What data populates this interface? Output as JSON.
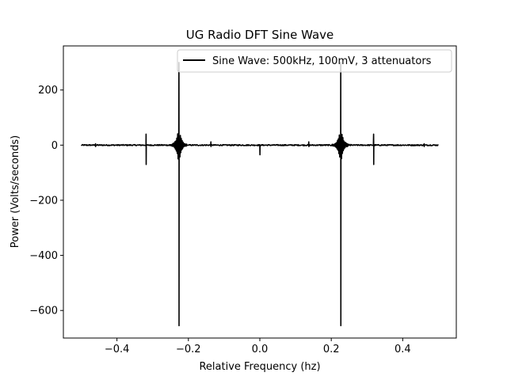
{
  "chart_data": {
    "type": "line",
    "title": "UG Radio DFT Sine Wave",
    "xlabel": "Relative Frequency (hz)",
    "ylabel": "Power (Volts/seconds)",
    "xlim": [
      -0.55,
      0.55
    ],
    "ylim": [
      -700,
      360
    ],
    "xticks": [
      -0.4,
      -0.2,
      0.0,
      0.2,
      0.4
    ],
    "xtick_labels": [
      "−0.4",
      "−0.2",
      "0.0",
      "0.2",
      "0.4"
    ],
    "yticks": [
      -600,
      -400,
      -200,
      0,
      200
    ],
    "ytick_labels": [
      "−600",
      "−400",
      "−200",
      "0",
      "200"
    ],
    "grid": false,
    "legend": {
      "position": "top-right"
    },
    "series": [
      {
        "name": "Sine Wave: 500kHz, 100mV, 3 attenuators",
        "color": "#000000",
        "x_range": [
          -0.5,
          0.5
        ],
        "baseline": 0,
        "features": [
          {
            "x": -0.3185,
            "up": 40,
            "down": -70
          },
          {
            "x": -0.2265,
            "up": 300,
            "down": -655,
            "ringing": 70
          },
          {
            "x": -0.137,
            "up": 12,
            "down": -5
          },
          {
            "x": 0.0,
            "up": 0,
            "down": -35
          },
          {
            "x": 0.137,
            "up": 12,
            "down": -5
          },
          {
            "x": 0.2265,
            "up": 300,
            "down": -655,
            "ringing": 70
          },
          {
            "x": 0.3185,
            "up": 40,
            "down": -70
          },
          {
            "x": -0.46,
            "up": 5,
            "down": -5
          },
          {
            "x": 0.46,
            "up": 5,
            "down": -5
          }
        ]
      }
    ]
  }
}
